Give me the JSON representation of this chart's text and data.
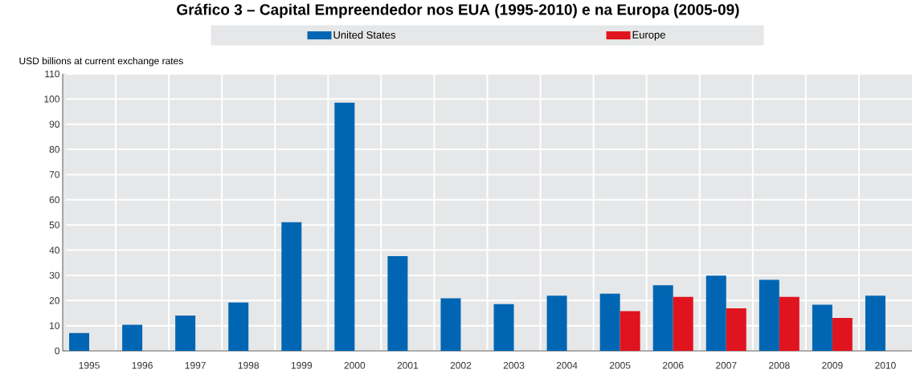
{
  "chart_data": {
    "type": "bar",
    "title": "Gráfico 3 – Capital Empreendedor nos EUA (1995-2010) e na Europa (2005-09)",
    "ylabel": "USD billions at current exchange rates",
    "categories": [
      "1995",
      "1996",
      "1997",
      "1998",
      "1999",
      "2000",
      "2001",
      "2002",
      "2003",
      "2004",
      "2005",
      "2006",
      "2007",
      "2008",
      "2009",
      "2010"
    ],
    "series": [
      {
        "name": "United States",
        "color": "#0066b3",
        "values": [
          7.1,
          10.4,
          14,
          19.2,
          51.1,
          98.6,
          37.6,
          20.9,
          18.6,
          21.9,
          22.7,
          26.1,
          29.9,
          28.2,
          18.3,
          21.9
        ]
      },
      {
        "name": "Europe",
        "color": "#e0141e",
        "values": [
          null,
          null,
          null,
          null,
          null,
          null,
          null,
          null,
          null,
          null,
          15.8,
          21.5,
          16.9,
          21.5,
          13.1,
          null
        ]
      }
    ],
    "ylim": [
      0,
      110
    ],
    "yticks": [
      0,
      10,
      20,
      30,
      40,
      50,
      60,
      70,
      80,
      90,
      100,
      110
    ],
    "grid": true,
    "legend": "top"
  }
}
